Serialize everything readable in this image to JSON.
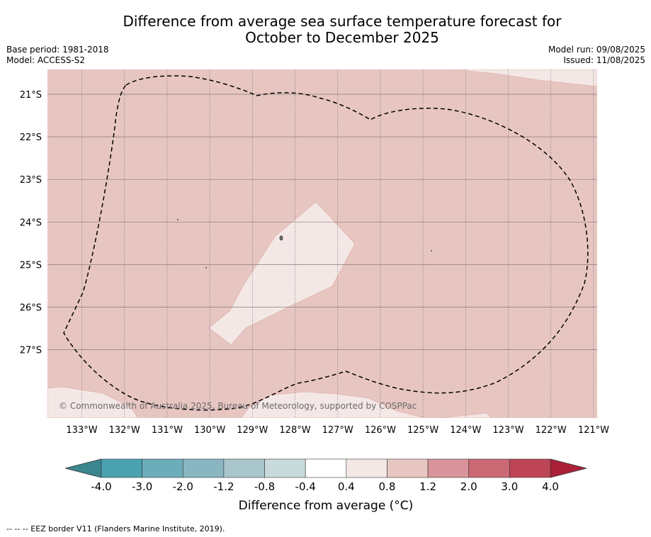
{
  "title_line1": "Difference from average sea surface temperature forecast for",
  "title_line2": "October to December 2025",
  "meta": {
    "base_period": "Base period: 1981-2018",
    "model": "Model: ACCESS-S2",
    "model_run": "Model run: 09/08/2025",
    "issued": "Issued: 11/08/2025"
  },
  "map": {
    "lat_labels": [
      "21°S",
      "22°S",
      "23°S",
      "24°S",
      "25°S",
      "26°S",
      "27°S"
    ],
    "lon_labels": [
      "133°W",
      "132°W",
      "131°W",
      "130°W",
      "129°W",
      "128°W",
      "127°W",
      "126°W",
      "125°W",
      "124°W",
      "123°W",
      "122°W",
      "121°W"
    ],
    "copyright": "© Commonwealth of Australia 2025, Bureau of Meteorology, supported by COSPPac",
    "fill_colors": {
      "band_0.8_1.2": "#e7c6c1",
      "band_0.4_0.8": "#f4e8e6"
    }
  },
  "colorbar": {
    "ticks": [
      "-4.0",
      "-3.0",
      "-2.0",
      "-1.2",
      "-0.8",
      "-0.4",
      "0.4",
      "0.8",
      "1.2",
      "2.0",
      "3.0",
      "4.0"
    ],
    "colors": [
      "#4aa1b0",
      "#6dadb9",
      "#8ab6c1",
      "#a9c6cc",
      "#c9dadd",
      "#ffffff",
      "#f4e8e6",
      "#e7c6c1",
      "#d9939a",
      "#cb6a75",
      "#be4556"
    ],
    "under_color": "#3c8690",
    "over_color": "#aa2137",
    "label": "Difference from average (°C)"
  },
  "footnote": "-- -- -- EEZ border V11 (Flanders Marine Institute, 2019)."
}
